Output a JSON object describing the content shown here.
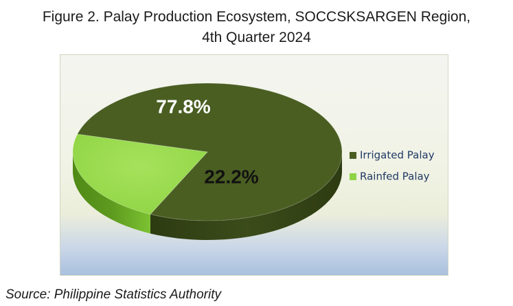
{
  "title_line1": "Figure 2. Palay Production Ecosystem, SOCCSKSARGEN Region,",
  "title_line2": "4th Quarter 2024",
  "source": "Source: Philippine Statistics Authority",
  "colors": {
    "irrigated_top": "#4a5e22",
    "irrigated_side": "#3b4c1a",
    "rainfed_top": "#8fd444",
    "rainfed_side": "#5d9a1e"
  },
  "chart_data": {
    "type": "pie",
    "title": "Figure 2. Palay Production Ecosystem, SOCCSKSARGEN Region, 4th Quarter 2024",
    "categories": [
      "Irrigated Palay",
      "Rainfed Palay"
    ],
    "values": [
      77.8,
      22.2
    ],
    "labels": [
      "77.8%",
      "22.2%"
    ],
    "legend": "right",
    "style": "3d"
  }
}
